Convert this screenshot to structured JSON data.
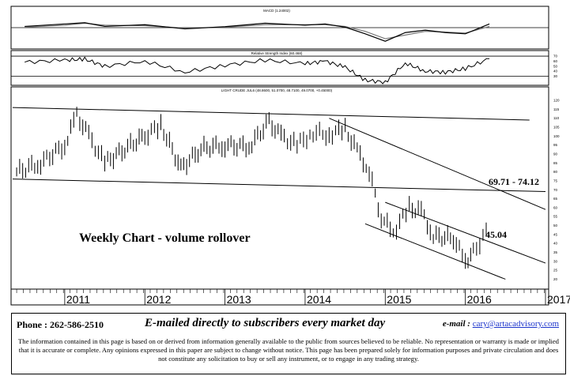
{
  "chart_data": [
    {
      "type": "line",
      "title": "MACD (1.24002)",
      "series": [],
      "x": [
        2010.5,
        2011.0,
        2011.25,
        2011.5,
        2012.0,
        2012.5,
        2013.0,
        2013.5,
        2014.0,
        2014.25,
        2014.5,
        2014.75,
        2015.0,
        2015.25,
        2015.5,
        2015.75,
        2016.0,
        2016.3
      ],
      "macd": [
        0.5,
        1.5,
        2.0,
        0.5,
        1.2,
        -0.5,
        0.4,
        1.8,
        1.0,
        1.5,
        0.2,
        -2.5,
        -5.5,
        -2.0,
        -1.0,
        -2.0,
        -2.5,
        1.5
      ],
      "signal": [
        0.2,
        1.0,
        1.8,
        1.0,
        0.8,
        -0.2,
        0.2,
        1.2,
        1.2,
        1.2,
        0.5,
        -1.5,
        -4.5,
        -3.0,
        -1.5,
        -1.8,
        -2.2,
        0.5
      ],
      "ylim": [
        -8,
        8
      ]
    },
    {
      "type": "line",
      "title": "Relative Strength Index (60.468)",
      "yticks": [
        30,
        40,
        50,
        60,
        70
      ],
      "x": [
        2010.5,
        2011.0,
        2011.25,
        2011.5,
        2012.0,
        2012.5,
        2013.0,
        2013.5,
        2014.0,
        2014.25,
        2014.5,
        2014.75,
        2015.0,
        2015.25,
        2015.5,
        2015.75,
        2016.0,
        2016.3
      ],
      "values": [
        58,
        62,
        64,
        50,
        60,
        38,
        52,
        62,
        55,
        60,
        48,
        22,
        18,
        56,
        40,
        38,
        45,
        65
      ],
      "levels": [
        30,
        70
      ],
      "ylim": [
        15,
        78
      ]
    },
    {
      "type": "line",
      "title": "LIGHT CRUDE JUL6 (48.8600, 51.0700, 48.7100, 49.0700, +0.45000)",
      "series": [],
      "x": [
        2010.4,
        2010.7,
        2011.0,
        2011.15,
        2011.3,
        2011.5,
        2011.75,
        2012.0,
        2012.2,
        2012.45,
        2012.7,
        2013.0,
        2013.3,
        2013.55,
        2013.7,
        2013.9,
        2014.1,
        2014.3,
        2014.5,
        2014.65,
        2014.8,
        2014.95,
        2015.1,
        2015.3,
        2015.45,
        2015.6,
        2015.85,
        2016.0,
        2016.1,
        2016.3
      ],
      "y": [
        80,
        85,
        95,
        112,
        100,
        85,
        93,
        100,
        106,
        82,
        93,
        95,
        94,
        108,
        100,
        95,
        102,
        101,
        104,
        92,
        80,
        55,
        46,
        60,
        58,
        44,
        43,
        30,
        35,
        49
      ],
      "yticks": [
        20,
        25,
        30,
        35,
        40,
        45,
        50,
        55,
        60,
        65,
        70,
        75,
        80,
        85,
        90,
        95,
        100,
        105,
        110,
        115,
        120
      ],
      "ylim": [
        18,
        124
      ],
      "xticks": [
        "2011",
        "2012",
        "2013",
        "2014",
        "2015",
        "2016",
        "2017"
      ],
      "annotations": [
        {
          "text": "Weekly Chart - volume rollover"
        },
        {
          "text": "69.71 - 74.12"
        },
        {
          "text": "45.04"
        }
      ]
    }
  ],
  "footer": {
    "phone": "Phone : 262-586-2510",
    "tagline": "E-mailed directly to subscribers every market day",
    "email_label": "e-mail :",
    "email": "cary@artacadvisory.com",
    "disclaimer": "The information contained in this page is based on or derived from information generally available to the public from sources believed to be reliable. No representation or warranty is made or implied that it is accurate or complete. Any opinions expressed in this paper are subject to change without notice. This page has been prepared solely for information purposes and private circulation and does not constitute any solicitation to buy or sell any instrument, or to engage in any trading strategy."
  }
}
